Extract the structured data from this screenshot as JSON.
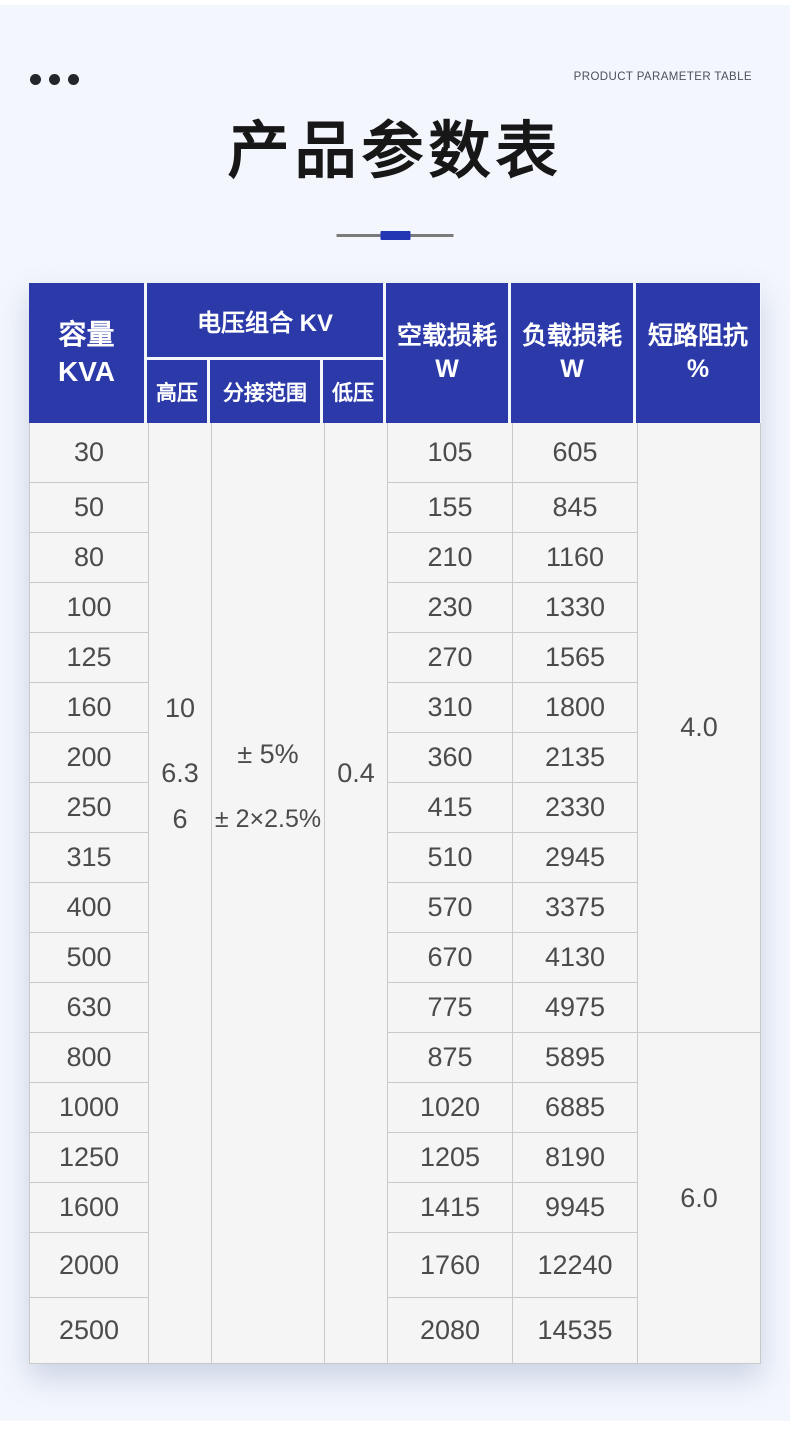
{
  "page": {
    "kicker": "PRODUCT PARAMETER TABLE",
    "title": "产品参数表"
  },
  "colors": {
    "header_blue": "#2b3aa8",
    "accent_blue": "#2336b4",
    "cell_bg": "#f5f5f5",
    "page_bg": "#f3f6fc"
  },
  "table": {
    "header": {
      "capacity_line1": "容量",
      "capacity_line2": "KVA",
      "voltage_group": "电压组合 KV",
      "sub_hv": "高压",
      "sub_tap": "分接范围",
      "sub_lv": "低压",
      "no_load_line1": "空载损耗",
      "no_load_line2": "W",
      "load_line1": "负载损耗",
      "load_line2": "W",
      "impedance_line1": "短路阻抗",
      "impedance_line2": "%"
    },
    "merged": {
      "hv": [
        "10",
        "6.3",
        "6"
      ],
      "tap": [
        "± 5%",
        "± 2×2.5%"
      ],
      "lv": "0.4"
    },
    "rows": [
      {
        "capacity": "30",
        "no_load": "105",
        "load": "605"
      },
      {
        "capacity": "50",
        "no_load": "155",
        "load": "845"
      },
      {
        "capacity": "80",
        "no_load": "210",
        "load": "1160"
      },
      {
        "capacity": "100",
        "no_load": "230",
        "load": "1330"
      },
      {
        "capacity": "125",
        "no_load": "270",
        "load": "1565"
      },
      {
        "capacity": "160",
        "no_load": "310",
        "load": "1800"
      },
      {
        "capacity": "200",
        "no_load": "360",
        "load": "2135"
      },
      {
        "capacity": "250",
        "no_load": "415",
        "load": "2330"
      },
      {
        "capacity": "315",
        "no_load": "510",
        "load": "2945"
      },
      {
        "capacity": "400",
        "no_load": "570",
        "load": "3375"
      },
      {
        "capacity": "500",
        "no_load": "670",
        "load": "4130"
      },
      {
        "capacity": "630",
        "no_load": "775",
        "load": "4975"
      },
      {
        "capacity": "800",
        "no_load": "875",
        "load": "5895"
      },
      {
        "capacity": "1000",
        "no_load": "1020",
        "load": "6885"
      },
      {
        "capacity": "1250",
        "no_load": "1205",
        "load": "8190"
      },
      {
        "capacity": "1600",
        "no_load": "1415",
        "load": "9945"
      },
      {
        "capacity": "2000",
        "no_load": "1760",
        "load": "12240"
      },
      {
        "capacity": "2500",
        "no_load": "2080",
        "load": "14535"
      }
    ],
    "impedance_groups": [
      {
        "value": "4.0",
        "rows": 12
      },
      {
        "value": "6.0",
        "rows": 6
      }
    ]
  }
}
